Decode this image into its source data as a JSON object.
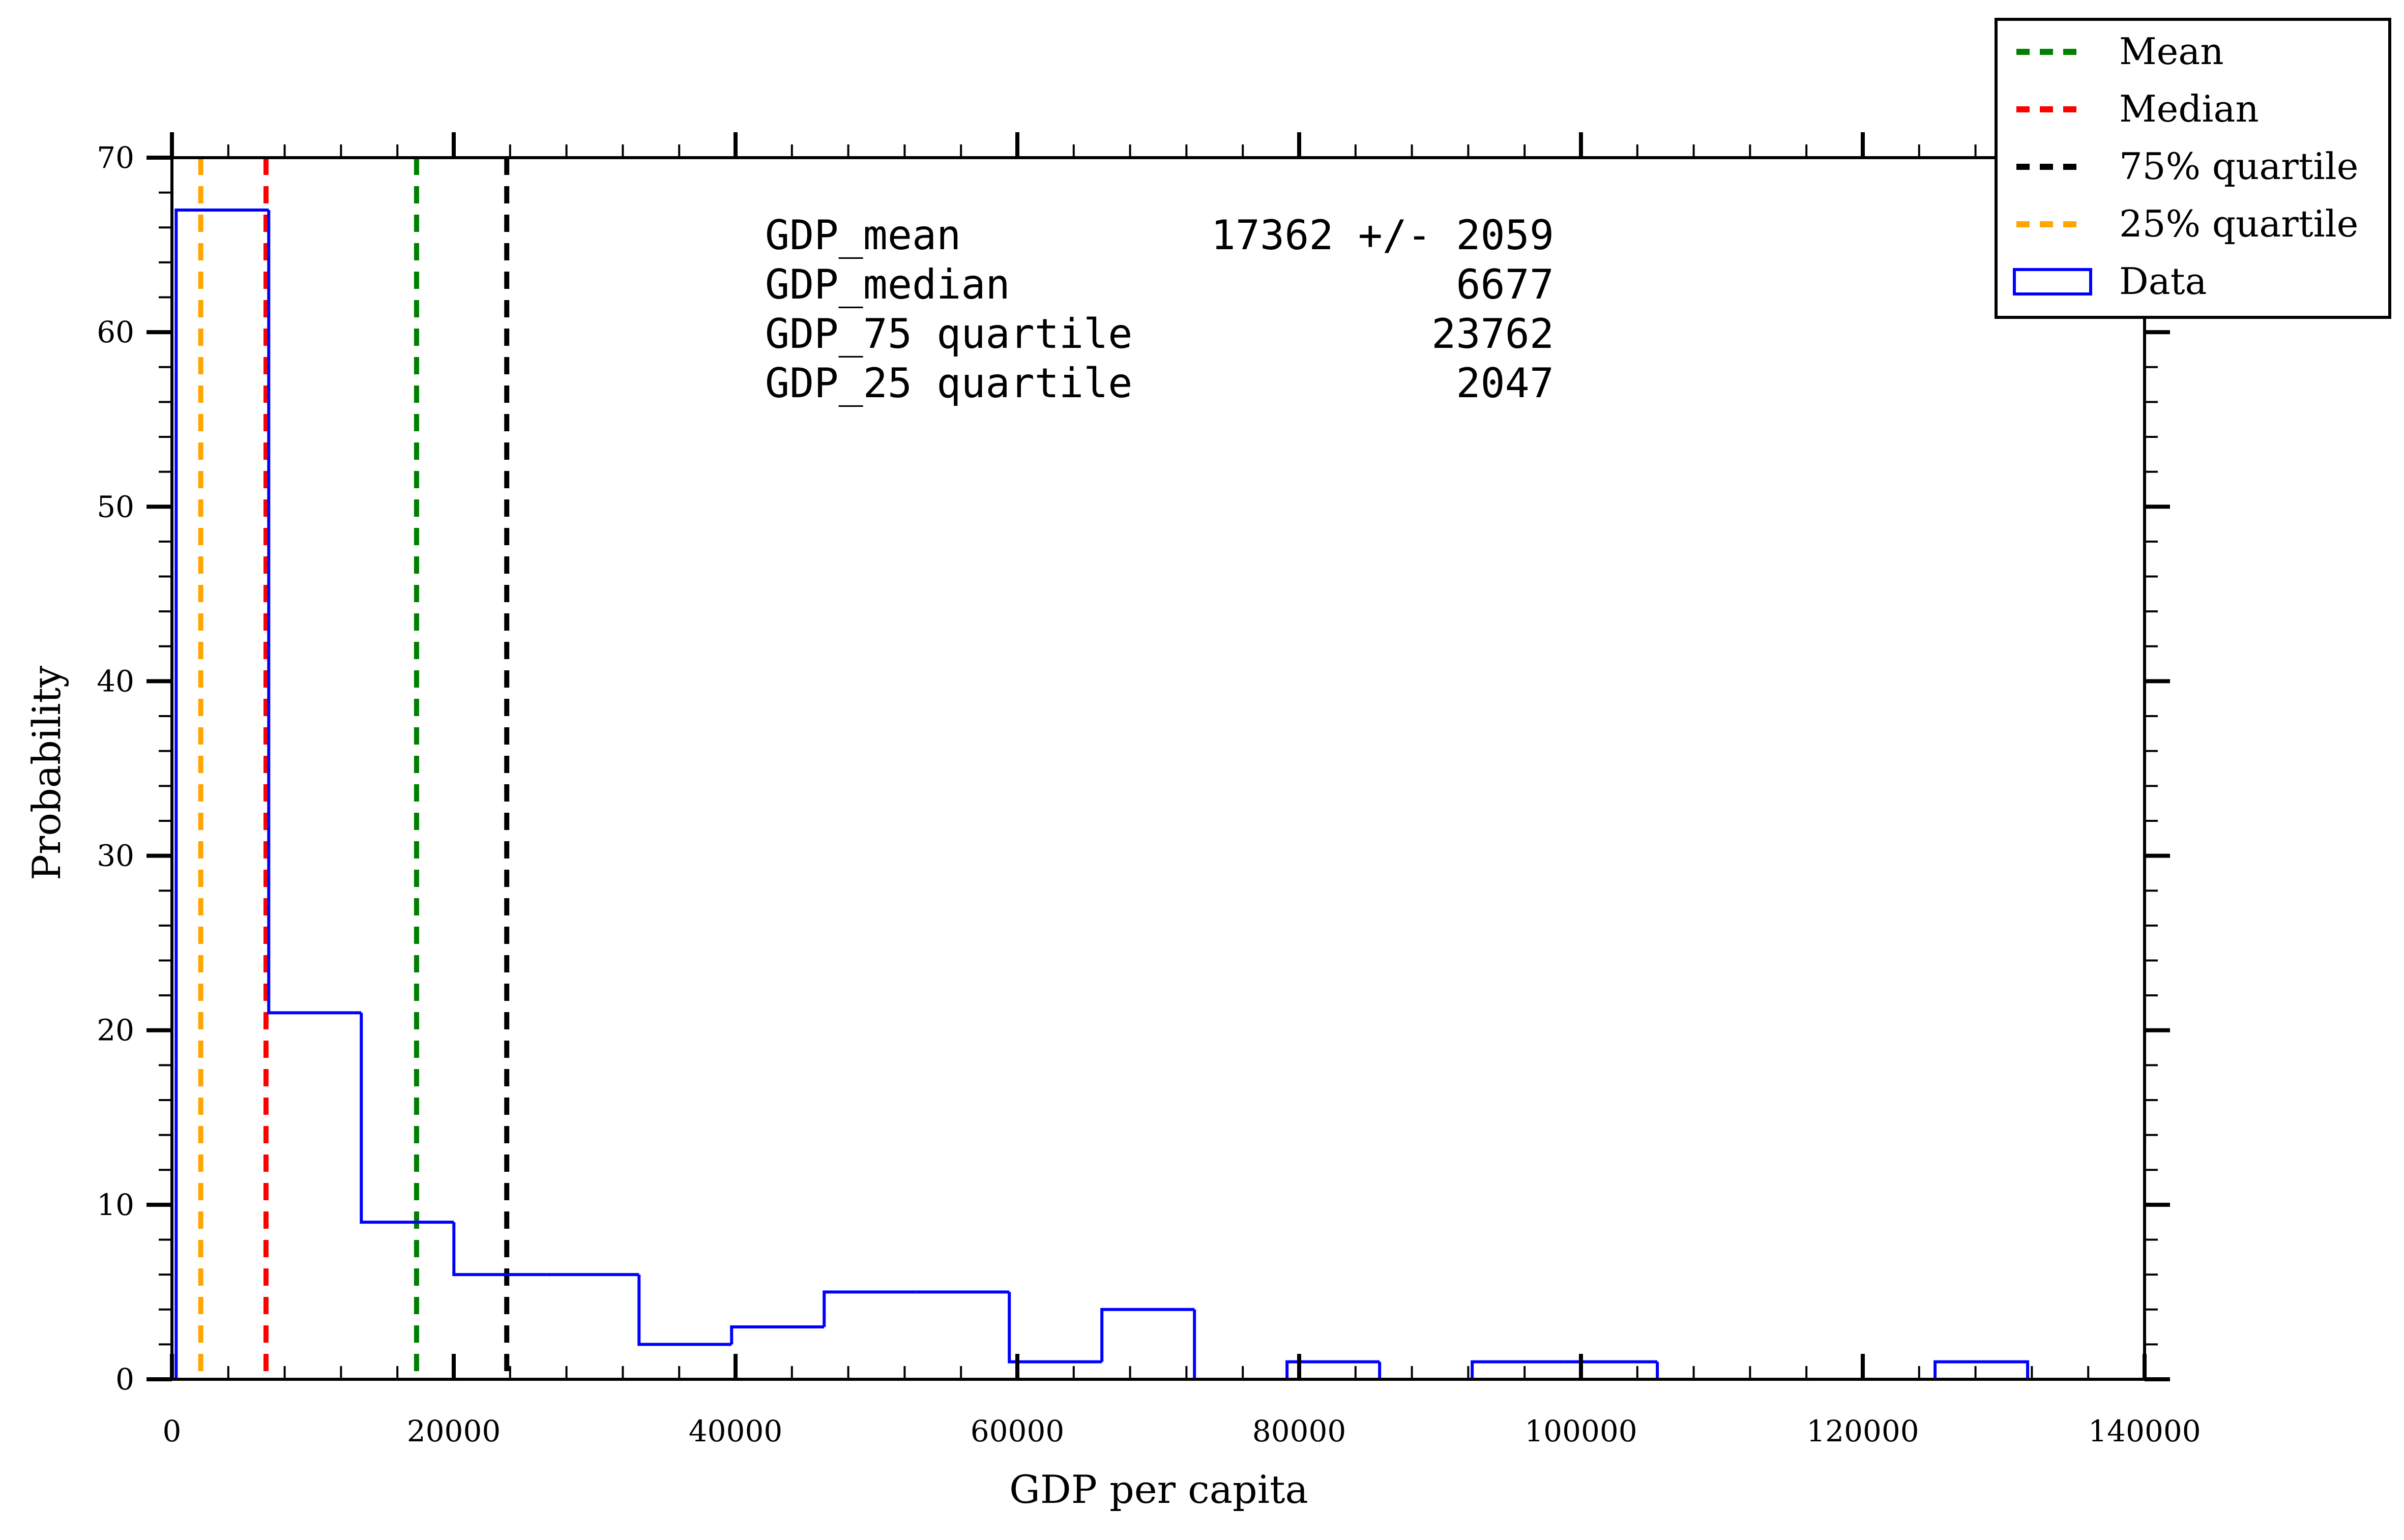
{
  "chart_data": {
    "type": "histogram",
    "xlabel": "GDP per capita",
    "ylabel": "Probability",
    "xlim": [
      0,
      140000
    ],
    "ylim": [
      0,
      70
    ],
    "xticks": [
      "0",
      "20000",
      "40000",
      "60000",
      "80000",
      "100000",
      "120000",
      "140000"
    ],
    "yticks": [
      "0",
      "10",
      "20",
      "30",
      "40",
      "50",
      "60",
      "70"
    ],
    "grid": false,
    "bins": [
      {
        "x0": 300,
        "x1": 6870,
        "count": 67
      },
      {
        "x0": 6870,
        "x1": 13440,
        "count": 21
      },
      {
        "x0": 13440,
        "x1": 20010,
        "count": 9
      },
      {
        "x0": 20010,
        "x1": 26580,
        "count": 6
      },
      {
        "x0": 26580,
        "x1": 33150,
        "count": 6
      },
      {
        "x0": 33150,
        "x1": 39720,
        "count": 2
      },
      {
        "x0": 39720,
        "x1": 46290,
        "count": 3
      },
      {
        "x0": 46290,
        "x1": 52860,
        "count": 5
      },
      {
        "x0": 52860,
        "x1": 59430,
        "count": 5
      },
      {
        "x0": 59430,
        "x1": 66000,
        "count": 1
      },
      {
        "x0": 66000,
        "x1": 72570,
        "count": 4
      },
      {
        "x0": 72570,
        "x1": 79140,
        "count": 0
      },
      {
        "x0": 79140,
        "x1": 85710,
        "count": 1
      },
      {
        "x0": 85710,
        "x1": 92280,
        "count": 0
      },
      {
        "x0": 92280,
        "x1": 98850,
        "count": 1
      },
      {
        "x0": 98850,
        "x1": 105420,
        "count": 1
      },
      {
        "x0": 105420,
        "x1": 111990,
        "count": 0
      },
      {
        "x0": 111990,
        "x1": 118560,
        "count": 0
      },
      {
        "x0": 118560,
        "x1": 125130,
        "count": 0
      },
      {
        "x0": 125130,
        "x1": 131700,
        "count": 1
      }
    ],
    "vlines": [
      {
        "name": "Mean",
        "x": 17362,
        "color": "#008000"
      },
      {
        "name": "Median",
        "x": 6677,
        "color": "#ff0000"
      },
      {
        "name": "75% quartile",
        "x": 23762,
        "color": "#000000"
      },
      {
        "name": "25% quartile",
        "x": 2047,
        "color": "#ffa500"
      }
    ],
    "data_series": {
      "name": "Data",
      "color": "#0000ff"
    },
    "legend_placement": "top-right",
    "stats": [
      {
        "label": "GDP_mean",
        "value": "17362 +/- 2059"
      },
      {
        "label": "GDP_median",
        "value": "6677"
      },
      {
        "label": "GDP_75 quartile",
        "value": "23762"
      },
      {
        "label": "GDP_25 quartile",
        "value": "2047"
      }
    ]
  }
}
